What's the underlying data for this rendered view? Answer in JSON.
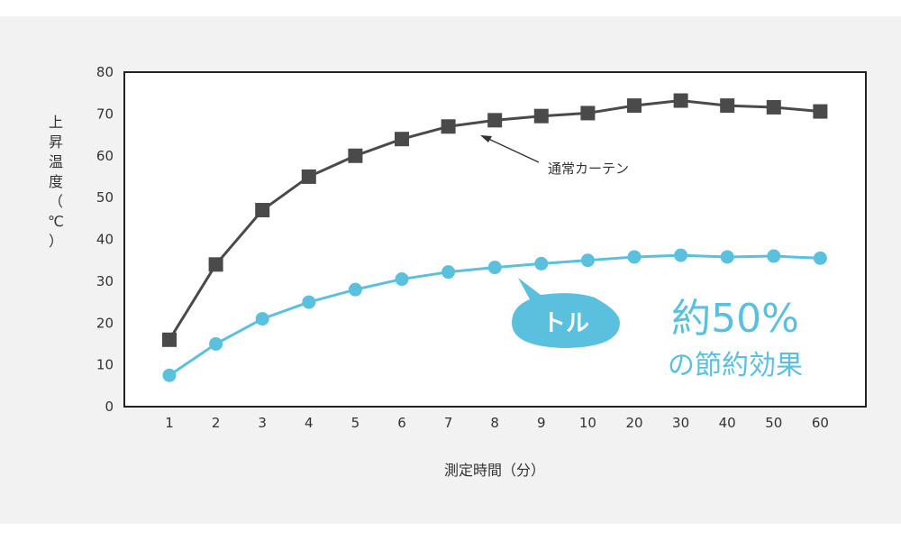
{
  "chart_data": {
    "type": "line",
    "title": "",
    "xlabel": "測定時間（分）",
    "ylabel": "上昇温度（℃）",
    "categories": [
      "1",
      "2",
      "3",
      "4",
      "5",
      "6",
      "7",
      "8",
      "9",
      "10",
      "20",
      "30",
      "40",
      "50",
      "60"
    ],
    "ylim": [
      0,
      80
    ],
    "yticks": [
      0,
      10,
      20,
      30,
      40,
      50,
      60,
      70,
      80
    ],
    "grid": false,
    "series": [
      {
        "name": "通常カーテン",
        "marker": "square",
        "color": "#4a4a4a",
        "values": [
          16,
          34,
          47,
          55,
          60,
          64,
          67,
          68.5,
          69.5,
          70.2,
          72,
          73.2,
          72,
          71.6,
          70.6
        ]
      },
      {
        "name": "トル",
        "marker": "circle",
        "color": "#5bc0de",
        "values": [
          7.5,
          15,
          21,
          25,
          28,
          30.5,
          32.2,
          33.3,
          34.2,
          35,
          35.8,
          36.2,
          35.8,
          36,
          35.5
        ]
      }
    ],
    "annotations": {
      "savings_main": "約50%",
      "savings_sub": "の節約効果"
    }
  },
  "colors": {
    "panel_bg": "#f2f2f2",
    "plot_bg": "#ffffff",
    "accent": "#5bc0de",
    "dark": "#4a4a4a"
  }
}
